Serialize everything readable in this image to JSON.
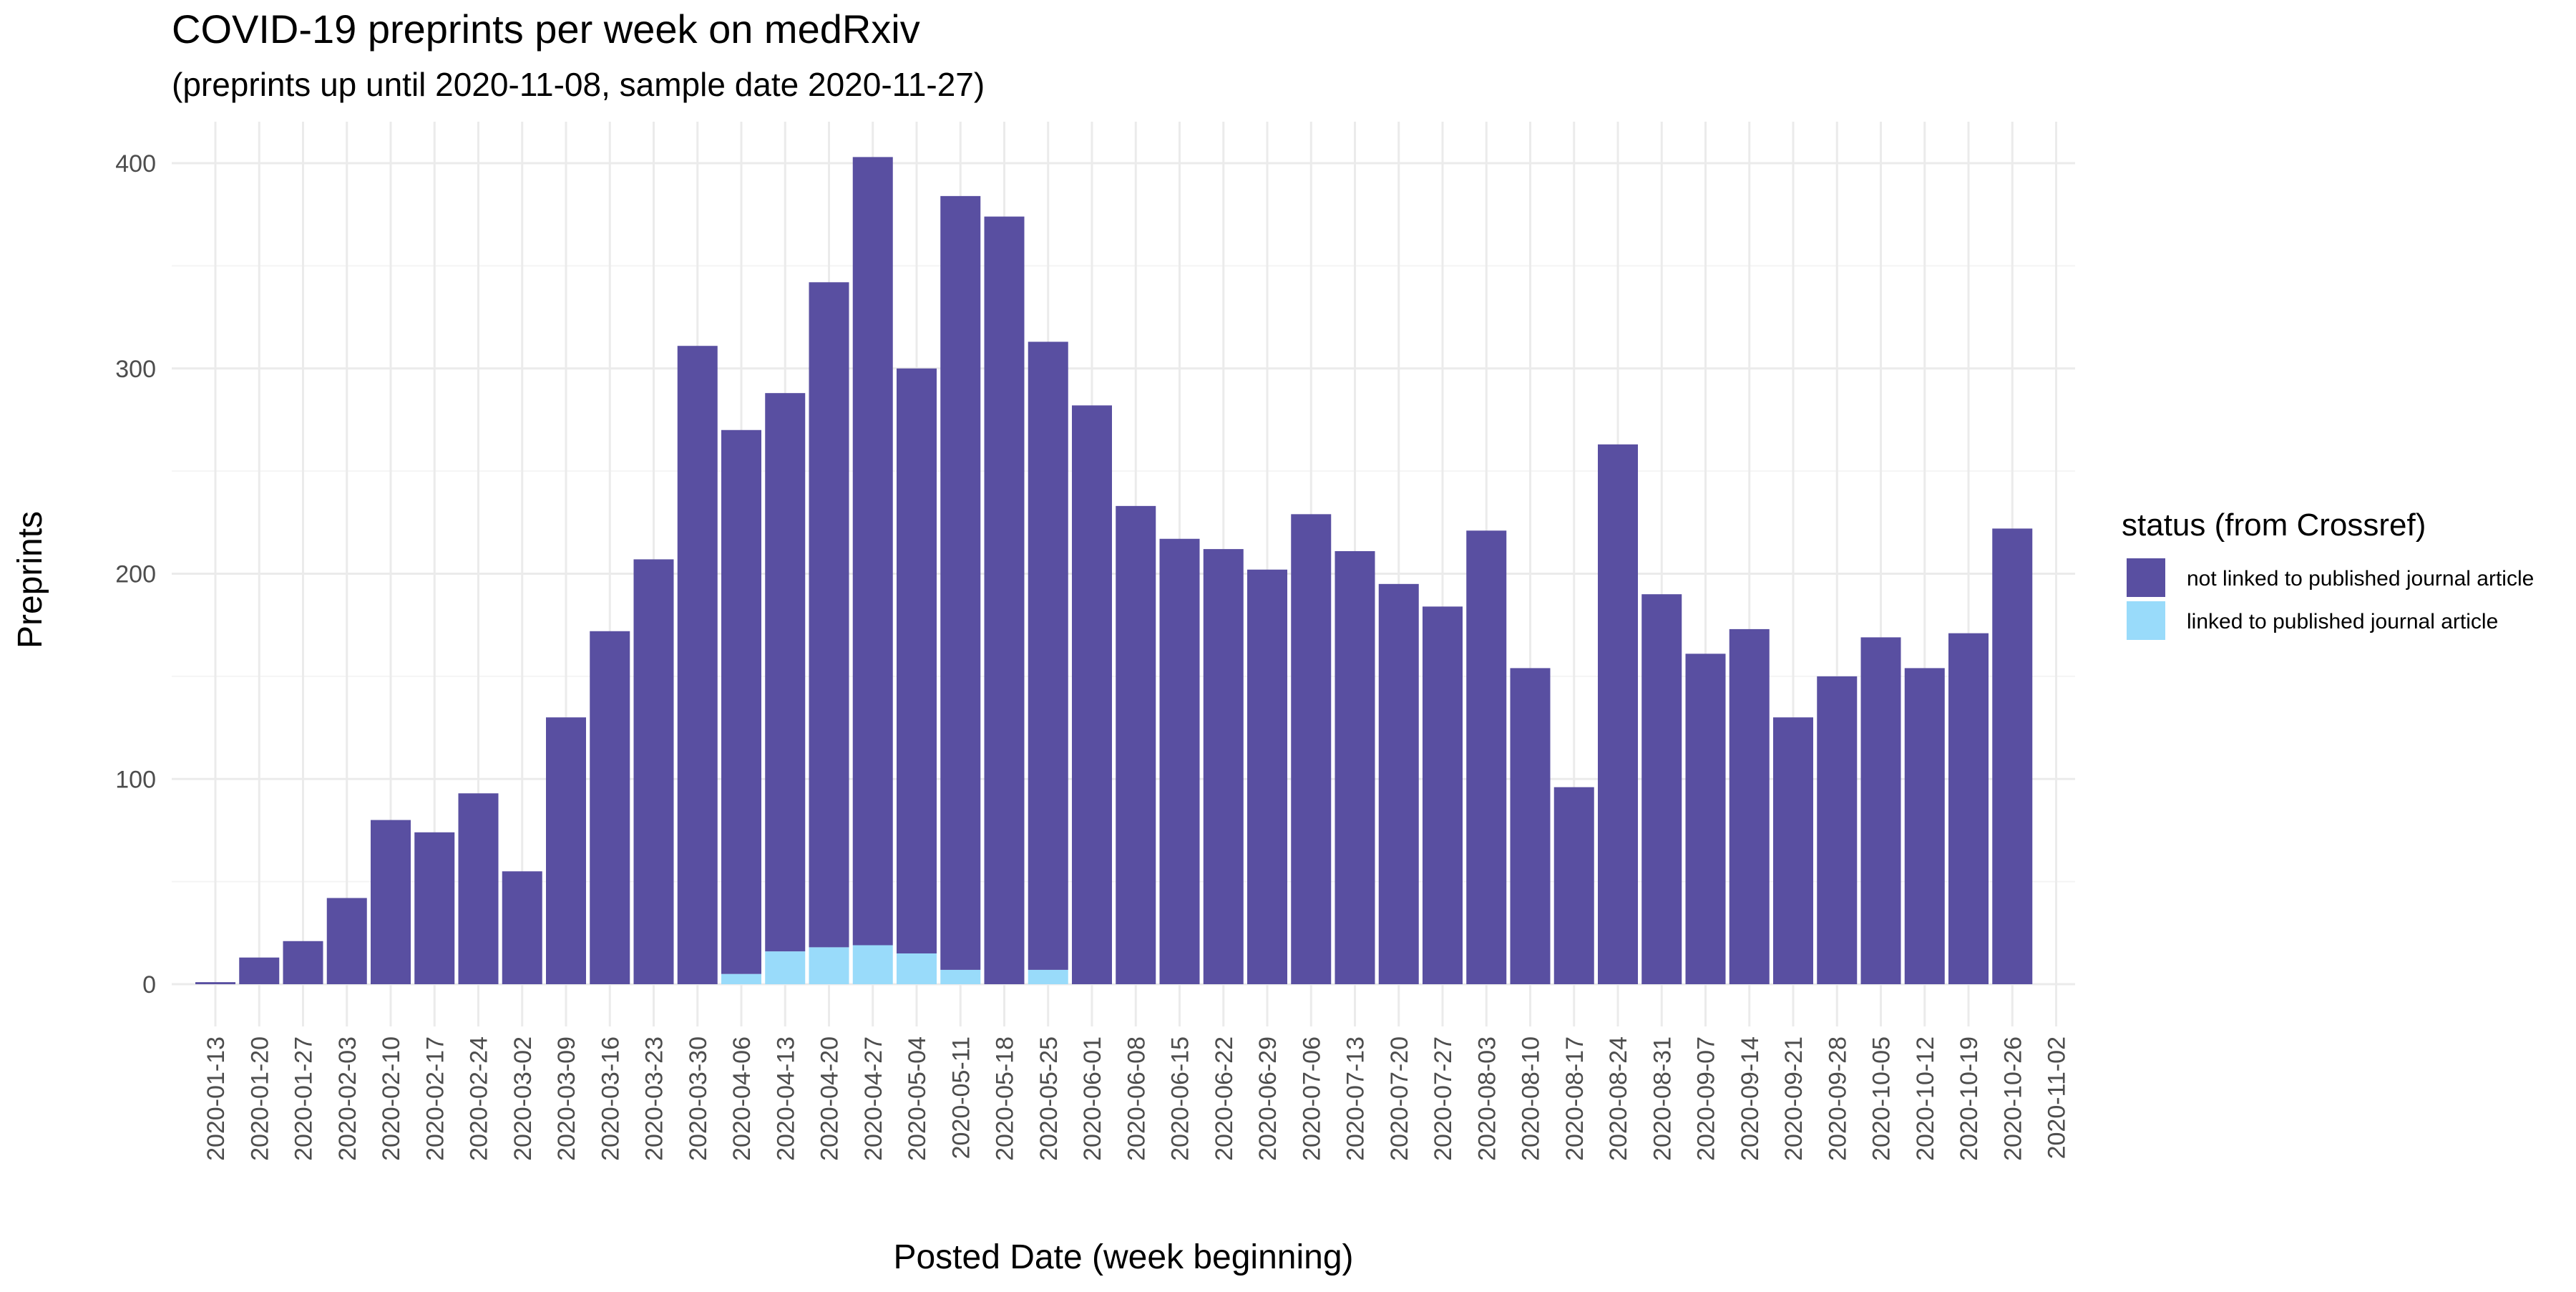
{
  "chart_data": {
    "type": "bar",
    "stacked": true,
    "title": "COVID-19 preprints per week on medRxiv",
    "subtitle": "(preprints up until 2020-11-08, sample date 2020-11-27)",
    "xlabel": "Posted Date (week beginning)",
    "ylabel": "Preprints",
    "ylim": [
      0,
      420
    ],
    "yticks": [
      0,
      100,
      200,
      300,
      400
    ],
    "grid": true,
    "legend_position": "right",
    "legend_title": "status (from Crossref)",
    "categories": [
      "2020-01-13",
      "2020-01-20",
      "2020-01-27",
      "2020-02-03",
      "2020-02-10",
      "2020-02-17",
      "2020-02-24",
      "2020-03-02",
      "2020-03-09",
      "2020-03-16",
      "2020-03-23",
      "2020-03-30",
      "2020-04-06",
      "2020-04-13",
      "2020-04-20",
      "2020-04-27",
      "2020-05-04",
      "2020-05-11",
      "2020-05-18",
      "2020-05-25",
      "2020-06-01",
      "2020-06-08",
      "2020-06-15",
      "2020-06-22",
      "2020-06-29",
      "2020-07-06",
      "2020-07-13",
      "2020-07-20",
      "2020-07-27",
      "2020-08-03",
      "2020-08-10",
      "2020-08-17",
      "2020-08-24",
      "2020-08-31",
      "2020-09-07",
      "2020-09-14",
      "2020-09-21",
      "2020-09-28",
      "2020-10-05",
      "2020-10-12",
      "2020-10-19",
      "2020-10-26",
      "2020-11-02"
    ],
    "series": [
      {
        "name": "linked to published journal article",
        "color": "#99dbfa",
        "values": [
          0,
          0,
          0,
          0,
          0,
          0,
          0,
          0,
          0,
          0,
          0,
          0,
          5,
          16,
          18,
          19,
          15,
          7,
          0,
          7,
          0,
          0,
          0,
          0,
          0,
          0,
          0,
          0,
          0,
          0,
          0,
          0,
          0,
          0,
          0,
          0,
          0,
          0,
          0,
          0,
          0,
          0,
          0
        ]
      },
      {
        "name": "not linked to published journal article",
        "color": "#594fa1",
        "values": [
          1,
          13,
          21,
          42,
          80,
          74,
          93,
          55,
          130,
          172,
          207,
          311,
          265,
          272,
          324,
          384,
          285,
          377,
          374,
          306,
          282,
          233,
          217,
          212,
          202,
          229,
          211,
          195,
          184,
          221,
          154,
          96,
          263,
          190,
          161,
          173,
          130,
          150,
          169,
          154,
          171,
          222,
          0
        ]
      }
    ]
  }
}
